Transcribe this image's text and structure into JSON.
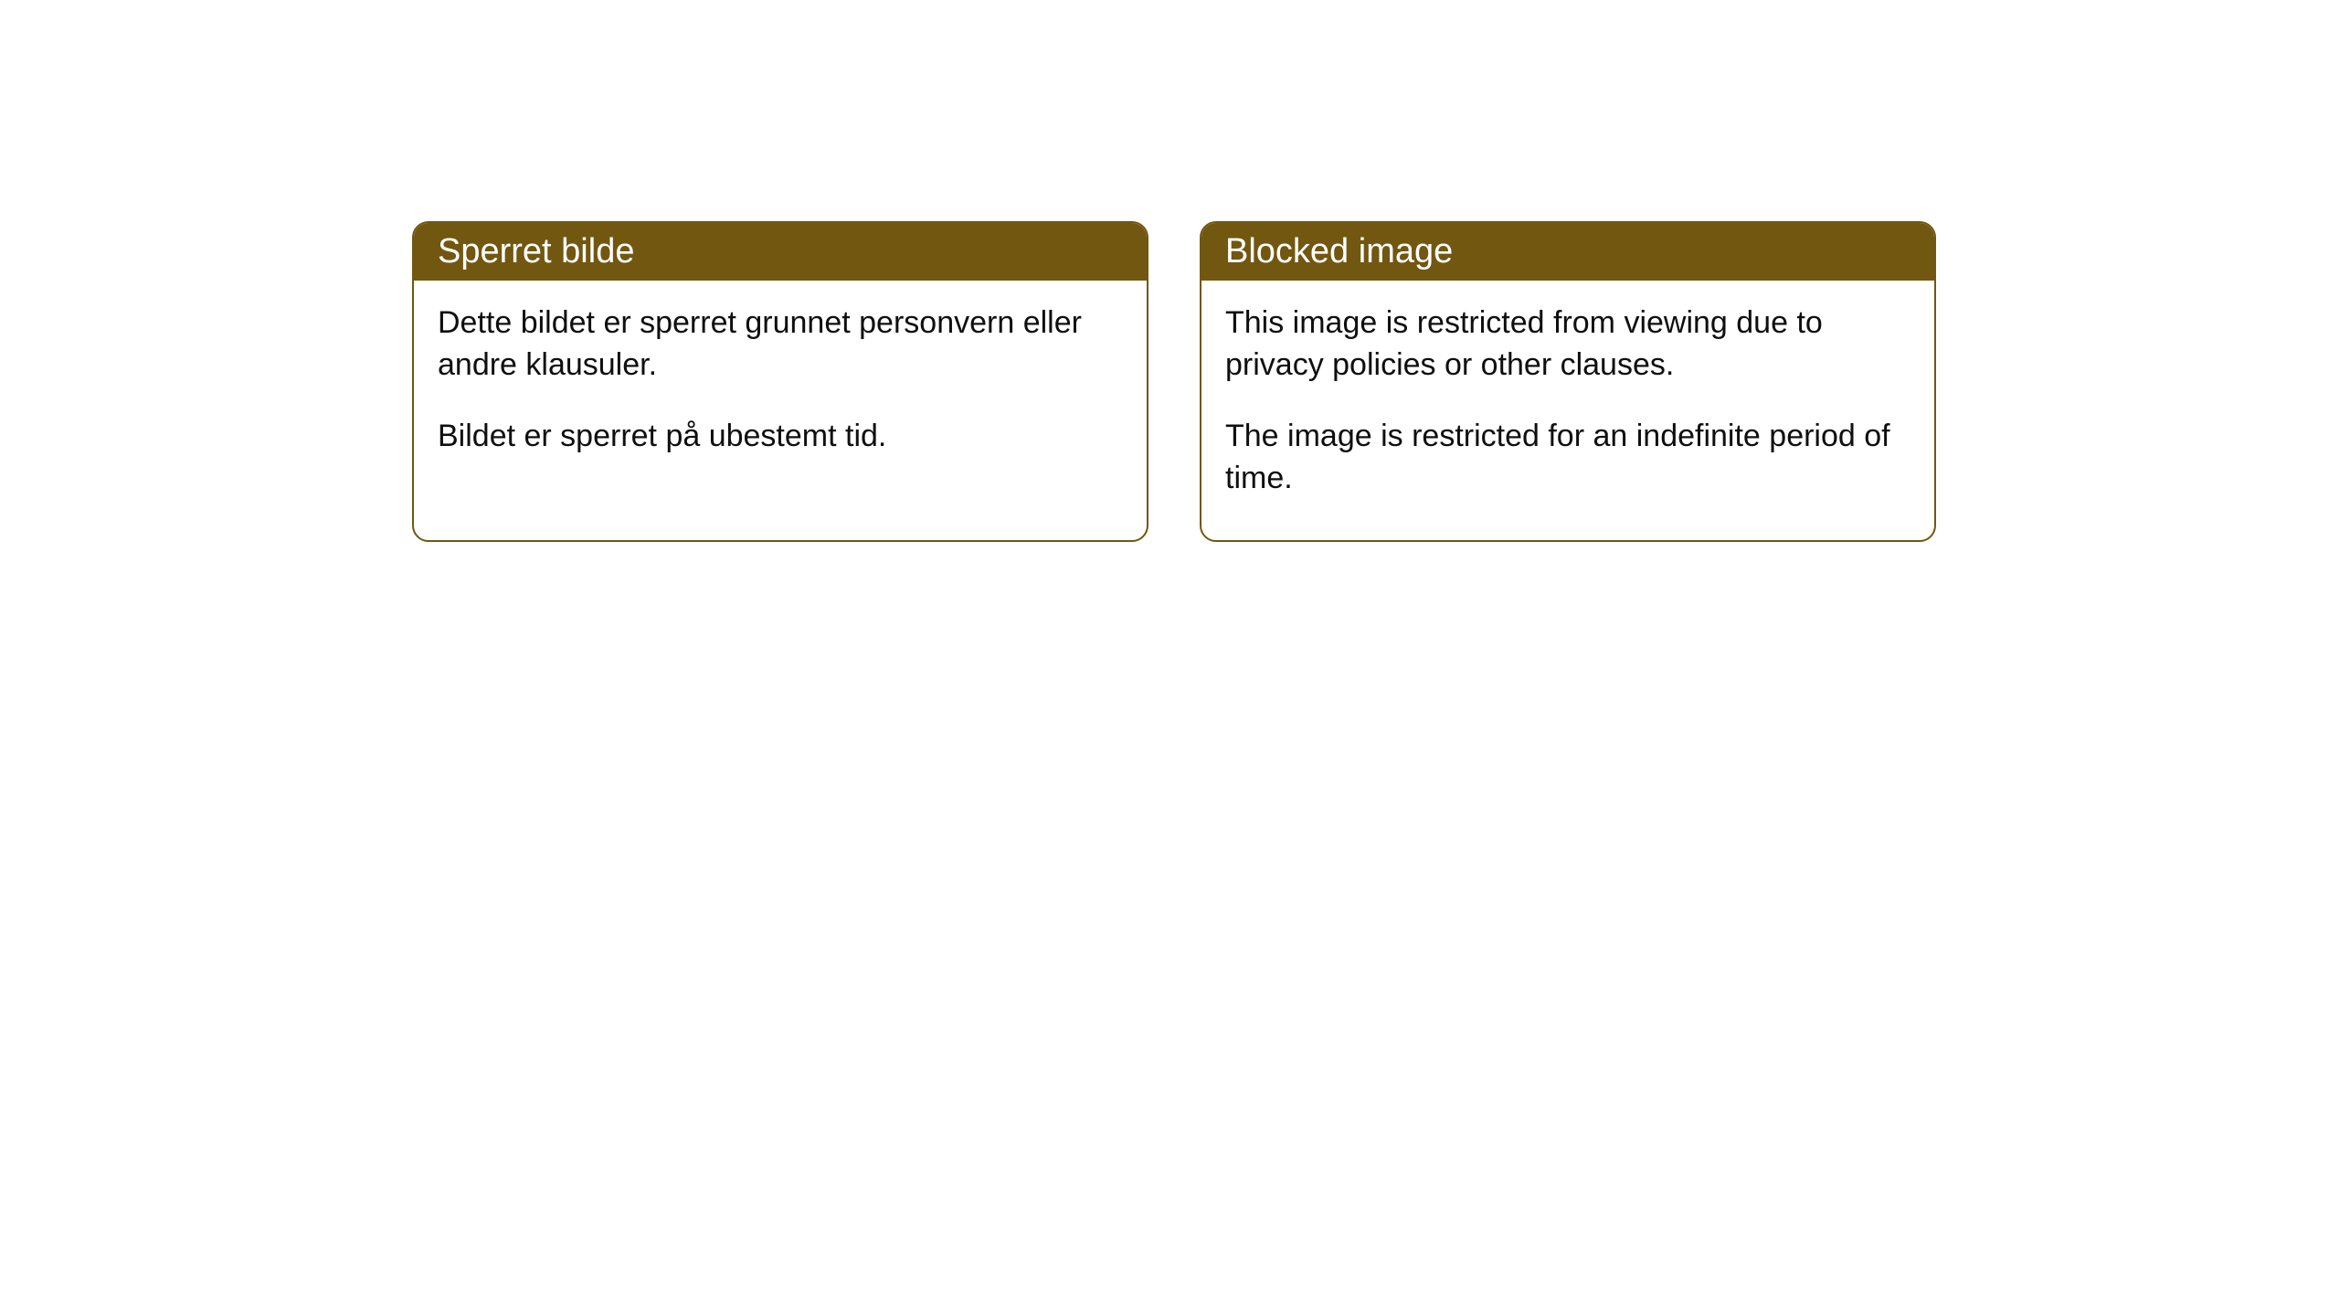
{
  "cards": [
    {
      "title": "Sperret bilde",
      "paragraph1": "Dette bildet er sperret grunnet personvern eller andre klausuler.",
      "paragraph2": "Bildet er sperret på ubestemt tid."
    },
    {
      "title": "Blocked image",
      "paragraph1": "This image is restricted from viewing due to privacy policies or other clauses.",
      "paragraph2": "The image is restricted for an indefinite period of time."
    }
  ],
  "style": {
    "header_bg": "#725711",
    "header_text_color": "#ffffff",
    "border_color": "#725711",
    "body_bg": "#ffffff",
    "text_color": "#0f0f0f",
    "border_radius": 18,
    "title_fontsize": 38,
    "body_fontsize": 34
  }
}
